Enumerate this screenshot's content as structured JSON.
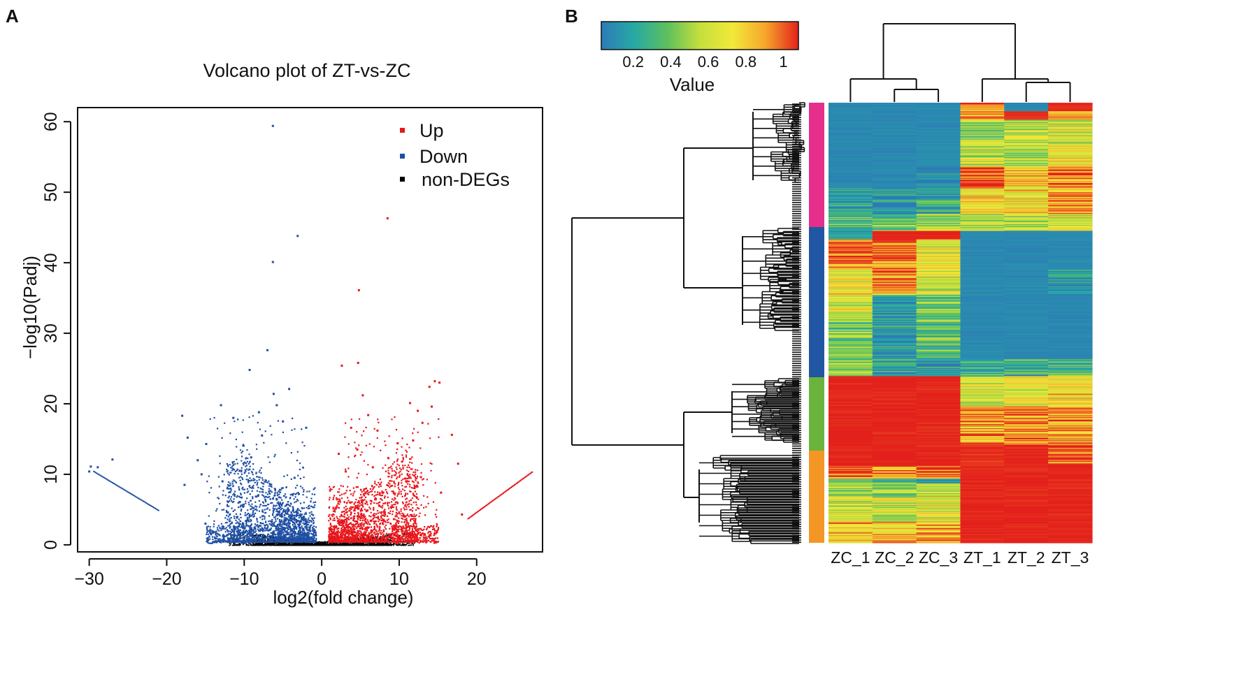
{
  "panels": {
    "a": "A",
    "b": "B"
  },
  "chart_data": [
    {
      "type": "scatter",
      "title": "Volcano plot of ZT-vs-ZC",
      "xlabel": "log2(fold change)",
      "ylabel": "−log10(Padj)",
      "xlim": [
        -31.5,
        28.5
      ],
      "ylim": [
        -1,
        62
      ],
      "xticks": [
        -30,
        -20,
        -10,
        0,
        10,
        20
      ],
      "xtick_labels": [
        "−30",
        "−20",
        "−10",
        "0",
        "10",
        "20"
      ],
      "yticks": [
        0,
        10,
        20,
        30,
        40,
        50,
        60
      ],
      "legend_position": "top-right",
      "series": [
        {
          "name": "Up",
          "color": "#e8161b",
          "points": [
            [
              8.5,
              46.3
            ],
            [
              4.8,
              36.1
            ],
            [
              2.6,
              25.4
            ],
            [
              4.7,
              25.8
            ],
            [
              14.6,
              23.2
            ],
            [
              15.2,
              23.0
            ],
            [
              13.9,
              22.4
            ],
            [
              5.3,
              21.2
            ],
            [
              11.4,
              20.1
            ],
            [
              13.0,
              17.3
            ],
            [
              16.8,
              15.6
            ],
            [
              7.2,
              16.2
            ],
            [
              3.8,
              16.6
            ],
            [
              6.0,
              18.4
            ],
            [
              9.8,
              14.4
            ],
            [
              17.6,
              11.5
            ],
            [
              18.1,
              4.3
            ],
            [
              12.8,
              9.6
            ],
            [
              15.4,
              7.4
            ],
            [
              2.2,
              12.9
            ],
            [
              4.6,
              13.5
            ],
            [
              8.6,
              12.3
            ],
            [
              10.8,
              9.4
            ],
            [
              11.8,
              14.8
            ],
            [
              12.4,
              19.0
            ],
            [
              14.2,
              19.6
            ],
            [
              6.6,
              11.0
            ],
            [
              3.1,
              10.4
            ]
          ]
        },
        {
          "name": "Down",
          "color": "#1f4fa3",
          "points": [
            [
              -6.3,
              59.4
            ],
            [
              -3.1,
              43.8
            ],
            [
              -6.3,
              40.1
            ],
            [
              -7.0,
              27.6
            ],
            [
              -9.3,
              24.8
            ],
            [
              -6.2,
              21.4
            ],
            [
              -4.2,
              22.1
            ],
            [
              -5.8,
              19.8
            ],
            [
              -13.0,
              19.8
            ],
            [
              -11.4,
              18.0
            ],
            [
              -18.0,
              18.3
            ],
            [
              -8.1,
              18.8
            ],
            [
              -7.7,
              15.5
            ],
            [
              -17.3,
              15.2
            ],
            [
              -14.9,
              14.3
            ],
            [
              -9.1,
              12.4
            ],
            [
              -10.6,
              10.5
            ],
            [
              -2.0,
              16.6
            ],
            [
              -5.0,
              17.5
            ],
            [
              -16.0,
              12.0
            ],
            [
              -15.5,
              10.0
            ],
            [
              -17.7,
              8.5
            ],
            [
              -12.8,
              9.0
            ],
            [
              -27.0,
              12.1
            ],
            [
              -29.8,
              11.1
            ],
            [
              -28.9,
              11.0
            ],
            [
              -30.0,
              10.4
            ],
            [
              -15.0,
              3.0
            ],
            [
              -11.8,
              7.5
            ],
            [
              -3.5,
              9.5
            ]
          ]
        },
        {
          "name": "non-DEGs",
          "color": "#000000",
          "points": []
        }
      ]
    },
    {
      "type": "heatmap",
      "columns": [
        "ZC_1",
        "ZC_2",
        "ZC_3",
        "ZT_1",
        "ZT_2",
        "ZT_3"
      ],
      "colorbar_title": "Value",
      "colorbar_ticks": [
        0.2,
        0.4,
        0.6,
        0.8,
        1
      ],
      "colorbar_tick_labels": [
        "0.2",
        "0.4",
        "0.6",
        "0.8",
        "1"
      ],
      "colorbar_range": [
        0.03,
        1.08
      ],
      "colormap": [
        "#2d7bb6",
        "#26a9a4",
        "#5cbf5e",
        "#c4df3c",
        "#f2e93a",
        "#f6a52b",
        "#e3211c"
      ],
      "cluster_colors": [
        "#e62e8b",
        "#2156a4",
        "#6ab43d",
        "#f39626"
      ],
      "column_tree": "((ZC_1,(ZC_2,ZC_3)),(ZT_1,(ZT_2,ZT_3)))",
      "row_segments": [
        {
          "rows": 10,
          "values": [
            0.05,
            0.05,
            0.05,
            0.95,
            0.05,
            1.0
          ]
        },
        {
          "rows": 10,
          "values": [
            0.05,
            0.05,
            0.05,
            0.75,
            0.98,
            0.85
          ]
        },
        {
          "rows": 30,
          "values": [
            0.05,
            0.05,
            0.05,
            0.45,
            0.5,
            0.55
          ]
        },
        {
          "rows": 25,
          "values": [
            0.05,
            0.05,
            0.07,
            0.55,
            0.45,
            0.65
          ]
        },
        {
          "rows": 25,
          "values": [
            0.05,
            0.05,
            0.1,
            0.95,
            0.7,
            0.9
          ]
        },
        {
          "rows": 30,
          "values": [
            0.12,
            0.12,
            0.2,
            0.7,
            0.7,
            0.85
          ]
        },
        {
          "rows": 20,
          "values": [
            0.3,
            0.35,
            0.4,
            0.5,
            0.5,
            0.6
          ]
        },
        {
          "rows": 10,
          "values": [
            0.1,
            1.0,
            1.0,
            0.05,
            0.05,
            0.05
          ]
        },
        {
          "rows": 35,
          "values": [
            0.9,
            0.9,
            0.6,
            0.05,
            0.05,
            0.05
          ]
        },
        {
          "rows": 30,
          "values": [
            0.65,
            0.8,
            0.55,
            0.05,
            0.05,
            0.1
          ]
        },
        {
          "rows": 30,
          "values": [
            0.6,
            0.1,
            0.35,
            0.05,
            0.05,
            0.05
          ]
        },
        {
          "rows": 45,
          "values": [
            0.35,
            0.12,
            0.3,
            0.05,
            0.05,
            0.05
          ]
        },
        {
          "rows": 20,
          "values": [
            0.4,
            0.2,
            0.1,
            0.25,
            0.25,
            0.3
          ]
        },
        {
          "rows": 35,
          "values": [
            1.0,
            1.0,
            1.0,
            0.55,
            0.6,
            0.7
          ]
        },
        {
          "rows": 45,
          "values": [
            1.0,
            1.0,
            1.0,
            0.8,
            0.85,
            0.8
          ]
        },
        {
          "rows": 25,
          "values": [
            1.0,
            1.0,
            1.0,
            0.98,
            1.0,
            0.95
          ]
        },
        {
          "rows": 15,
          "values": [
            0.9,
            0.9,
            0.9,
            1.0,
            1.0,
            1.0
          ]
        },
        {
          "rows": 5,
          "values": [
            0.35,
            0.25,
            0.1,
            1.0,
            1.0,
            1.0
          ]
        },
        {
          "rows": 15,
          "values": [
            0.45,
            0.45,
            0.5,
            1.0,
            1.0,
            1.0
          ]
        },
        {
          "rows": 30,
          "values": [
            0.55,
            0.55,
            0.6,
            1.0,
            1.0,
            1.0
          ]
        },
        {
          "rows": 25,
          "values": [
            0.75,
            0.75,
            0.8,
            1.0,
            1.0,
            1.0
          ]
        }
      ]
    }
  ]
}
